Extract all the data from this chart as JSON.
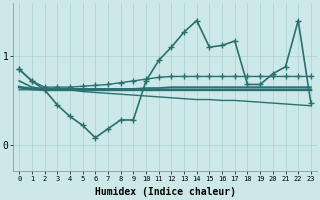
{
  "background_color": "#cce8e8",
  "line_color": "#2a7070",
  "grid_color": "#aad0d0",
  "xlabel": "Humidex (Indice chaleur)",
  "xlim": [
    -0.5,
    23.5
  ],
  "ylim": [
    -0.3,
    1.6
  ],
  "yticks": [
    0,
    1
  ],
  "xticks": [
    0,
    1,
    2,
    3,
    4,
    5,
    6,
    7,
    8,
    9,
    10,
    11,
    12,
    13,
    14,
    15,
    16,
    17,
    18,
    19,
    20,
    21,
    22,
    23
  ],
  "series": [
    {
      "x": [
        0,
        1,
        2,
        3,
        4,
        5,
        6,
        7,
        8,
        9,
        10,
        11,
        12,
        13,
        14,
        15,
        16,
        17,
        18,
        19,
        20,
        21,
        22,
        23
      ],
      "y": [
        0.85,
        0.72,
        0.62,
        0.45,
        0.32,
        0.22,
        0.08,
        0.18,
        0.28,
        0.28,
        0.72,
        0.95,
        1.1,
        1.27,
        1.4,
        1.1,
        1.12,
        1.17,
        0.68,
        0.68,
        0.8,
        0.88,
        1.4,
        0.47
      ],
      "marker": "+",
      "markersize": 5,
      "linewidth": 1.2,
      "linestyle": "-"
    },
    {
      "x": [
        0,
        1,
        2,
        3,
        4,
        5,
        6,
        7,
        8,
        9,
        10,
        11,
        12,
        13,
        14,
        15,
        16,
        17,
        18,
        19,
        20,
        21,
        22,
        23
      ],
      "y": [
        0.85,
        0.72,
        0.65,
        0.65,
        0.65,
        0.66,
        0.67,
        0.68,
        0.7,
        0.72,
        0.74,
        0.76,
        0.77,
        0.77,
        0.77,
        0.77,
        0.77,
        0.77,
        0.77,
        0.77,
        0.77,
        0.77,
        0.77,
        0.77
      ],
      "marker": "+",
      "markersize": 4,
      "linewidth": 1.0,
      "linestyle": "-"
    },
    {
      "x": [
        0,
        1,
        2,
        3,
        4,
        5,
        6,
        7,
        8,
        9,
        10,
        11,
        12,
        13,
        14,
        15,
        16,
        17,
        18,
        19,
        20,
        21,
        22,
        23
      ],
      "y": [
        0.72,
        0.65,
        0.63,
        0.63,
        0.63,
        0.63,
        0.63,
        0.63,
        0.63,
        0.63,
        0.64,
        0.64,
        0.65,
        0.65,
        0.65,
        0.65,
        0.65,
        0.65,
        0.65,
        0.65,
        0.65,
        0.65,
        0.65,
        0.65
      ],
      "marker": null,
      "markersize": 0,
      "linewidth": 1.2,
      "linestyle": "-"
    },
    {
      "x": [
        0,
        1,
        2,
        3,
        4,
        5,
        6,
        7,
        8,
        9,
        10,
        11,
        12,
        13,
        14,
        15,
        16,
        17,
        18,
        19,
        20,
        21,
        22,
        23
      ],
      "y": [
        0.65,
        0.63,
        0.62,
        0.62,
        0.62,
        0.62,
        0.62,
        0.62,
        0.62,
        0.62,
        0.62,
        0.62,
        0.62,
        0.62,
        0.62,
        0.62,
        0.62,
        0.62,
        0.62,
        0.62,
        0.62,
        0.62,
        0.62,
        0.62
      ],
      "marker": null,
      "markersize": 0,
      "linewidth": 2.0,
      "linestyle": "-"
    },
    {
      "x": [
        0,
        1,
        2,
        3,
        4,
        5,
        6,
        7,
        8,
        9,
        10,
        11,
        12,
        13,
        14,
        15,
        16,
        17,
        18,
        19,
        20,
        21,
        22,
        23
      ],
      "y": [
        0.62,
        0.62,
        0.62,
        0.62,
        0.62,
        0.6,
        0.59,
        0.58,
        0.57,
        0.56,
        0.55,
        0.54,
        0.53,
        0.52,
        0.51,
        0.51,
        0.5,
        0.5,
        0.49,
        0.48,
        0.47,
        0.46,
        0.45,
        0.44
      ],
      "marker": null,
      "markersize": 0,
      "linewidth": 1.0,
      "linestyle": "-"
    }
  ]
}
